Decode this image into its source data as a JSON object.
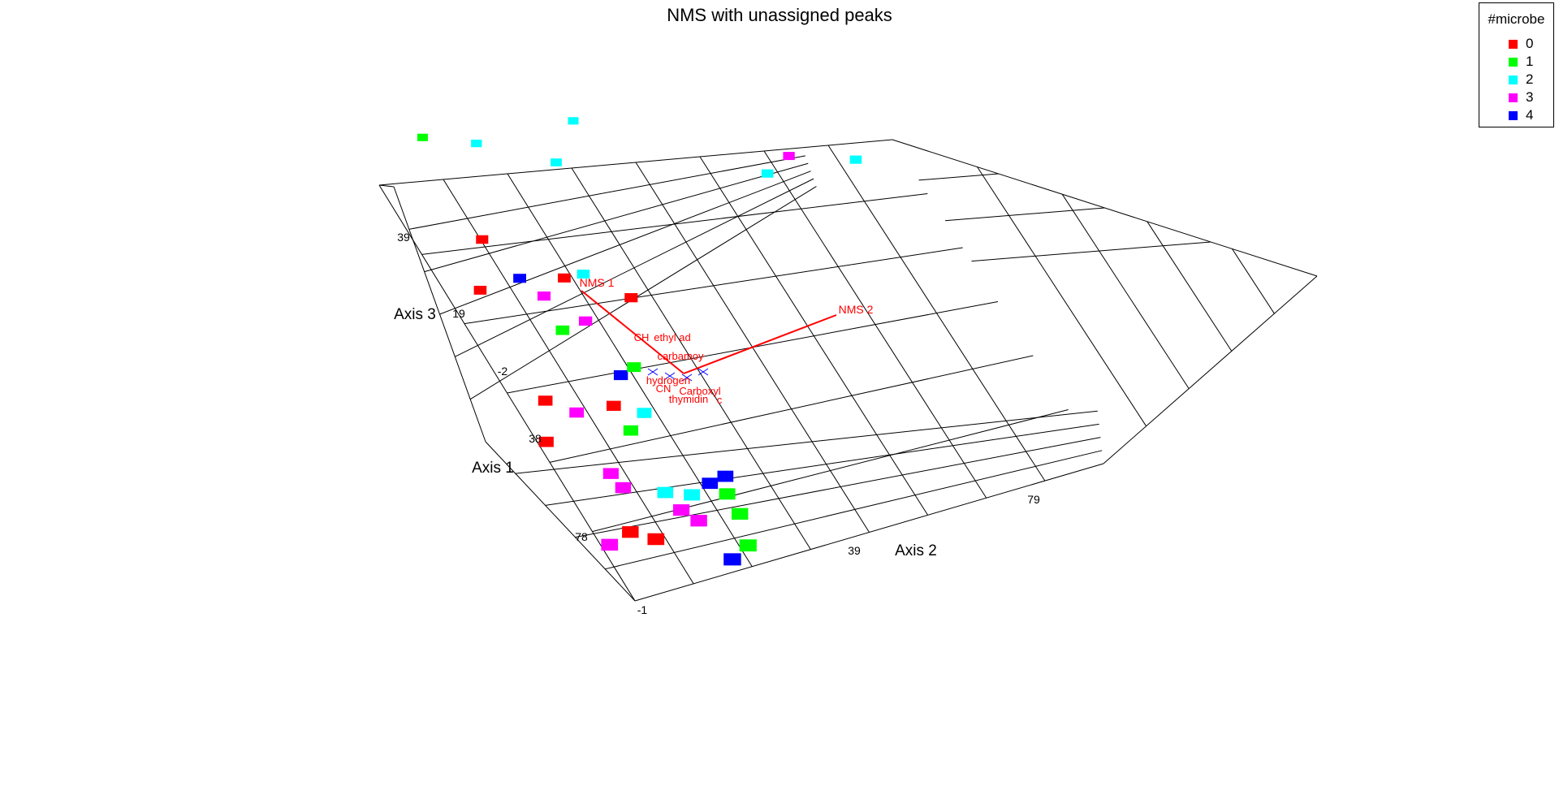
{
  "chart_data": {
    "type": "scatter",
    "title": "NMS with unassigned peaks",
    "axes": {
      "x": {
        "label": "Axis 1",
        "ticks": [
          "-1",
          "38",
          "78"
        ]
      },
      "y": {
        "label": "Axis 2",
        "ticks": [
          "39",
          "79"
        ]
      },
      "z": {
        "label": "Axis 3",
        "ticks": [
          "-2",
          "19",
          "39"
        ]
      }
    },
    "grid": true,
    "legend": {
      "title": "#microbe",
      "placement": "top-right",
      "items": [
        {
          "label": "0",
          "color": "#ff0000"
        },
        {
          "label": "1",
          "color": "#00ff00"
        },
        {
          "label": "2",
          "color": "#00ffff"
        },
        {
          "label": "3",
          "color": "#ff00ff"
        },
        {
          "label": "4",
          "color": "#0000ff"
        }
      ]
    },
    "vectors": [
      {
        "label": "NMS 1",
        "color": "#ff0000"
      },
      {
        "label": "NMS 2",
        "color": "#ff0000"
      }
    ],
    "peak_labels": [
      "CH",
      "ethyl ad",
      "carbamoy",
      "hydrogen",
      "CN",
      "Carboxyl",
      "thymidin",
      "c"
    ],
    "points": [
      {
        "x": 8,
        "y": 0,
        "z": 38,
        "group": 1
      },
      {
        "x": 10,
        "y": 8,
        "z": 38,
        "group": 2
      },
      {
        "x": 24,
        "y": 2,
        "z": 30,
        "group": 0
      },
      {
        "x": 14,
        "y": 20,
        "z": 36,
        "group": 2
      },
      {
        "x": 8,
        "y": 25,
        "z": 39,
        "group": 2
      },
      {
        "x": 30,
        "y": 6,
        "z": 26,
        "group": 4
      },
      {
        "x": 28,
        "y": 0,
        "z": 18,
        "group": 0
      },
      {
        "x": 32,
        "y": 10,
        "z": 22,
        "group": 3
      },
      {
        "x": 30,
        "y": 15,
        "z": 24,
        "group": 0
      },
      {
        "x": 28,
        "y": 20,
        "z": 20,
        "group": 2
      },
      {
        "x": 36,
        "y": 12,
        "z": 16,
        "group": 1
      },
      {
        "x": 34,
        "y": 18,
        "z": 14,
        "group": 3
      },
      {
        "x": 32,
        "y": 28,
        "z": 17,
        "group": 0
      },
      {
        "x": 44,
        "y": 4,
        "z": 6,
        "group": 0
      },
      {
        "x": 46,
        "y": 10,
        "z": 4,
        "group": 3
      },
      {
        "x": 48,
        "y": 2,
        "z": -2,
        "group": 0
      },
      {
        "x": 42,
        "y": 22,
        "z": 8,
        "group": 4
      },
      {
        "x": 40,
        "y": 26,
        "z": 6,
        "group": 1
      },
      {
        "x": 44,
        "y": 20,
        "z": 0,
        "group": 0
      },
      {
        "x": 48,
        "y": 22,
        "z": -2,
        "group": 1
      },
      {
        "x": 46,
        "y": 26,
        "z": 0,
        "group": 2
      },
      {
        "x": 56,
        "y": 12,
        "z": 0,
        "group": 3
      },
      {
        "x": 58,
        "y": 14,
        "z": -2,
        "group": 3
      },
      {
        "x": 60,
        "y": 24,
        "z": -2,
        "group": 2
      },
      {
        "x": 60,
        "y": 36,
        "z": -1,
        "group": 4
      },
      {
        "x": 60,
        "y": 40,
        "z": 1,
        "group": 4
      },
      {
        "x": 68,
        "y": 2,
        "z": -1,
        "group": 3
      },
      {
        "x": 66,
        "y": 10,
        "z": -2,
        "group": 0
      },
      {
        "x": 68,
        "y": 16,
        "z": -2,
        "group": 0
      },
      {
        "x": 64,
        "y": 26,
        "z": -1,
        "group": 3
      },
      {
        "x": 62,
        "y": 30,
        "z": 0,
        "group": 2
      },
      {
        "x": 66,
        "y": 30,
        "z": -2,
        "group": 3
      },
      {
        "x": 62,
        "y": 40,
        "z": -2,
        "group": 1
      },
      {
        "x": 66,
        "y": 42,
        "z": -2,
        "group": 1
      },
      {
        "x": 74,
        "y": 36,
        "z": -2,
        "group": 4
      },
      {
        "x": 72,
        "y": 42,
        "z": -2,
        "group": 1
      },
      {
        "x": 20,
        "y": 56,
        "z": 36,
        "group": 2
      },
      {
        "x": 18,
        "y": 60,
        "z": 38,
        "group": 3
      },
      {
        "x": 20,
        "y": 72,
        "z": 38,
        "group": 2
      }
    ]
  }
}
